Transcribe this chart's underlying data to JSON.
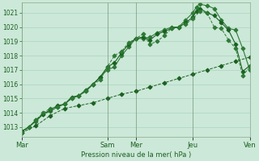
{
  "bg_color": "#cce8d8",
  "grid_color": "#aad4c0",
  "line_color_dark": "#1a6020",
  "line_color_mid": "#2d7a35",
  "ylabel": "Pression niveau de la mer( hPa )",
  "ylim": [
    1012.3,
    1021.7
  ],
  "yticks": [
    1013,
    1014,
    1015,
    1016,
    1017,
    1018,
    1019,
    1020,
    1021
  ],
  "xtick_labels": [
    "Mar",
    "Sam",
    "Mer",
    "Jeu",
    "Ven"
  ],
  "xtick_pos": [
    0,
    12,
    16,
    24,
    32
  ],
  "vline_pos": [
    0,
    12,
    16,
    24,
    32
  ],
  "series1_x": [
    0,
    2,
    4,
    6,
    8,
    10,
    12,
    14,
    16,
    18,
    20,
    22,
    24,
    26,
    28,
    30,
    32
  ],
  "series1_y": [
    1012.6,
    1013.1,
    1013.8,
    1014.3,
    1014.5,
    1014.7,
    1015.0,
    1015.3,
    1015.5,
    1015.8,
    1016.1,
    1016.4,
    1016.7,
    1017.0,
    1017.3,
    1017.6,
    1017.9
  ],
  "series2_x": [
    0,
    1,
    2,
    3,
    4,
    5,
    6,
    7,
    8,
    9,
    10,
    11,
    12,
    13,
    14,
    15,
    16,
    17,
    18,
    19,
    20,
    21,
    22,
    23,
    24,
    24.5,
    25,
    26,
    27,
    28,
    29,
    30,
    31,
    32
  ],
  "series2_y": [
    1012.7,
    1013.0,
    1013.4,
    1013.9,
    1014.1,
    1014.4,
    1014.6,
    1015.0,
    1015.2,
    1015.5,
    1016.0,
    1016.5,
    1017.0,
    1017.2,
    1018.0,
    1018.6,
    1019.2,
    1019.2,
    1019.3,
    1019.6,
    1019.8,
    1020.0,
    1020.0,
    1020.5,
    1021.0,
    1021.4,
    1021.6,
    1021.5,
    1021.3,
    1020.5,
    1019.9,
    1019.8,
    1018.5,
    1017.0
  ],
  "series3_x": [
    0,
    1,
    2,
    3,
    4,
    5,
    6,
    7,
    8,
    9,
    10,
    11,
    12,
    13,
    14,
    15,
    16,
    17,
    18,
    19,
    20,
    21,
    22,
    23,
    24,
    24.5,
    25,
    26,
    27,
    28,
    29,
    30,
    31,
    32
  ],
  "series3_y": [
    1012.7,
    1013.0,
    1013.5,
    1013.9,
    1014.2,
    1014.5,
    1014.6,
    1015.1,
    1015.2,
    1015.6,
    1016.0,
    1016.5,
    1017.2,
    1017.5,
    1018.2,
    1018.8,
    1019.2,
    1019.3,
    1019.1,
    1019.5,
    1019.7,
    1019.9,
    1020.0,
    1020.3,
    1020.7,
    1021.1,
    1021.3,
    1021.0,
    1020.8,
    1020.3,
    1019.8,
    1018.8,
    1016.9,
    1017.3
  ],
  "series4_x": [
    0,
    1,
    2,
    3,
    4,
    5,
    6,
    7,
    8,
    9,
    10,
    11,
    12,
    13,
    14,
    15,
    16,
    17,
    18,
    19,
    20,
    21,
    22,
    23,
    24,
    25,
    26,
    27,
    28,
    29,
    30,
    31,
    32
  ],
  "series4_y": [
    1012.6,
    1013.0,
    1013.5,
    1014.0,
    1014.3,
    1014.4,
    1014.6,
    1015.0,
    1015.2,
    1015.5,
    1016.0,
    1016.3,
    1017.2,
    1018.0,
    1018.3,
    1018.9,
    1019.2,
    1019.5,
    1018.8,
    1019.0,
    1019.4,
    1019.9,
    1020.0,
    1020.2,
    1020.6,
    1021.1,
    1021.0,
    1020.0,
    1019.9,
    1019.1,
    1018.5,
    1016.6,
    1017.2
  ],
  "n_points": 33,
  "x_total": 32
}
